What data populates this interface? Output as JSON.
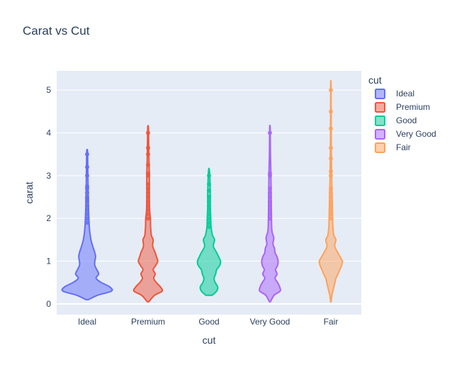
{
  "chart_data": {
    "type": "violin",
    "title": "Carat vs Cut",
    "xlabel": "cut",
    "ylabel": "carat",
    "categories": [
      "Ideal",
      "Premium",
      "Good",
      "Very Good",
      "Fair"
    ],
    "yticks": [
      0,
      1,
      2,
      3,
      4,
      5
    ],
    "ylim": [
      -0.25,
      5.45
    ],
    "grid": true,
    "legend_title": "cut",
    "legend_position": "top-right",
    "series": [
      {
        "name": "Ideal",
        "color": "#636efa",
        "profile": [
          [
            0.1,
            0.05
          ],
          [
            0.2,
            0.4
          ],
          [
            0.3,
            0.95
          ],
          [
            0.4,
            0.88
          ],
          [
            0.5,
            0.55
          ],
          [
            0.6,
            0.35
          ],
          [
            0.7,
            0.45
          ],
          [
            0.8,
            0.38
          ],
          [
            0.9,
            0.3
          ],
          [
            1.0,
            0.3
          ],
          [
            1.1,
            0.33
          ],
          [
            1.2,
            0.3
          ],
          [
            1.35,
            0.22
          ],
          [
            1.5,
            0.15
          ],
          [
            1.7,
            0.1
          ],
          [
            1.85,
            0.08
          ],
          [
            2.0,
            0.07
          ],
          [
            2.3,
            0.05
          ],
          [
            2.7,
            0.04
          ],
          [
            3.0,
            0.03
          ],
          [
            3.5,
            0.02
          ],
          [
            3.6,
            0.01
          ]
        ],
        "points": [
          3.5,
          3.2,
          3.0,
          2.75,
          2.7,
          2.6,
          2.5,
          2.45,
          2.4,
          2.3,
          2.2,
          2.1,
          2.0,
          1.9
        ]
      },
      {
        "name": "Premium",
        "color": "#ef553b",
        "profile": [
          [
            0.05,
            0.03
          ],
          [
            0.2,
            0.25
          ],
          [
            0.3,
            0.55
          ],
          [
            0.4,
            0.48
          ],
          [
            0.5,
            0.32
          ],
          [
            0.6,
            0.22
          ],
          [
            0.7,
            0.28
          ],
          [
            0.8,
            0.2
          ],
          [
            0.9,
            0.3
          ],
          [
            1.0,
            0.38
          ],
          [
            1.1,
            0.33
          ],
          [
            1.2,
            0.28
          ],
          [
            1.35,
            0.18
          ],
          [
            1.5,
            0.2
          ],
          [
            1.6,
            0.13
          ],
          [
            1.8,
            0.1
          ],
          [
            2.0,
            0.09
          ],
          [
            2.2,
            0.06
          ],
          [
            2.5,
            0.05
          ],
          [
            3.0,
            0.05
          ],
          [
            3.5,
            0.03
          ],
          [
            4.0,
            0.02
          ],
          [
            4.15,
            0.01
          ]
        ],
        "points": [
          4.0,
          3.65,
          3.5,
          3.25,
          3.05,
          3.0,
          2.8,
          2.7,
          2.6,
          2.5,
          2.4,
          2.3,
          2.2,
          2.1,
          2.0
        ]
      },
      {
        "name": "Good",
        "color": "#00cc96",
        "profile": [
          [
            0.2,
            0.12
          ],
          [
            0.3,
            0.3
          ],
          [
            0.4,
            0.34
          ],
          [
            0.5,
            0.24
          ],
          [
            0.6,
            0.2
          ],
          [
            0.7,
            0.26
          ],
          [
            0.8,
            0.3
          ],
          [
            0.9,
            0.42
          ],
          [
            1.0,
            0.45
          ],
          [
            1.1,
            0.38
          ],
          [
            1.2,
            0.3
          ],
          [
            1.35,
            0.17
          ],
          [
            1.5,
            0.22
          ],
          [
            1.6,
            0.14
          ],
          [
            1.8,
            0.08
          ],
          [
            2.0,
            0.07
          ],
          [
            2.3,
            0.05
          ],
          [
            2.6,
            0.05
          ],
          [
            3.0,
            0.03
          ],
          [
            3.15,
            0.01
          ]
        ],
        "points": [
          3.0,
          2.8,
          2.65,
          2.5,
          2.4,
          2.3,
          2.2,
          2.1,
          2.0,
          1.9,
          1.8
        ]
      },
      {
        "name": "Very Good",
        "color": "#ab63fa",
        "profile": [
          [
            0.05,
            0.02
          ],
          [
            0.2,
            0.16
          ],
          [
            0.3,
            0.4
          ],
          [
            0.4,
            0.38
          ],
          [
            0.5,
            0.3
          ],
          [
            0.6,
            0.2
          ],
          [
            0.7,
            0.28
          ],
          [
            0.8,
            0.22
          ],
          [
            0.9,
            0.3
          ],
          [
            1.0,
            0.32
          ],
          [
            1.1,
            0.28
          ],
          [
            1.2,
            0.2
          ],
          [
            1.3,
            0.18
          ],
          [
            1.4,
            0.12
          ],
          [
            1.55,
            0.15
          ],
          [
            1.7,
            0.08
          ],
          [
            2.0,
            0.06
          ],
          [
            2.5,
            0.05
          ],
          [
            3.0,
            0.04
          ],
          [
            3.5,
            0.02
          ],
          [
            4.1,
            0.01
          ]
        ],
        "points": [
          4.0,
          3.05,
          3.0,
          2.7,
          2.6,
          2.5,
          2.4,
          2.3,
          2.2,
          2.1,
          2.0
        ]
      },
      {
        "name": "Fair",
        "color": "#ffa15a",
        "profile": [
          [
            0.05,
            0.01
          ],
          [
            0.2,
            0.04
          ],
          [
            0.3,
            0.08
          ],
          [
            0.4,
            0.12
          ],
          [
            0.5,
            0.16
          ],
          [
            0.6,
            0.2
          ],
          [
            0.7,
            0.28
          ],
          [
            0.8,
            0.35
          ],
          [
            0.9,
            0.42
          ],
          [
            1.0,
            0.45
          ],
          [
            1.1,
            0.36
          ],
          [
            1.2,
            0.27
          ],
          [
            1.35,
            0.15
          ],
          [
            1.5,
            0.2
          ],
          [
            1.6,
            0.12
          ],
          [
            1.8,
            0.08
          ],
          [
            2.0,
            0.07
          ],
          [
            2.5,
            0.05
          ],
          [
            3.0,
            0.03
          ],
          [
            3.5,
            0.02
          ],
          [
            4.0,
            0.015
          ],
          [
            4.5,
            0.01
          ],
          [
            5.0,
            0.008
          ],
          [
            5.2,
            0.005
          ]
        ],
        "points": [
          5.0,
          4.5,
          4.1,
          3.65,
          3.4,
          3.1,
          3.0,
          2.7,
          2.6,
          2.5,
          2.4,
          2.3,
          2.2,
          2.1,
          2.0
        ]
      }
    ]
  }
}
